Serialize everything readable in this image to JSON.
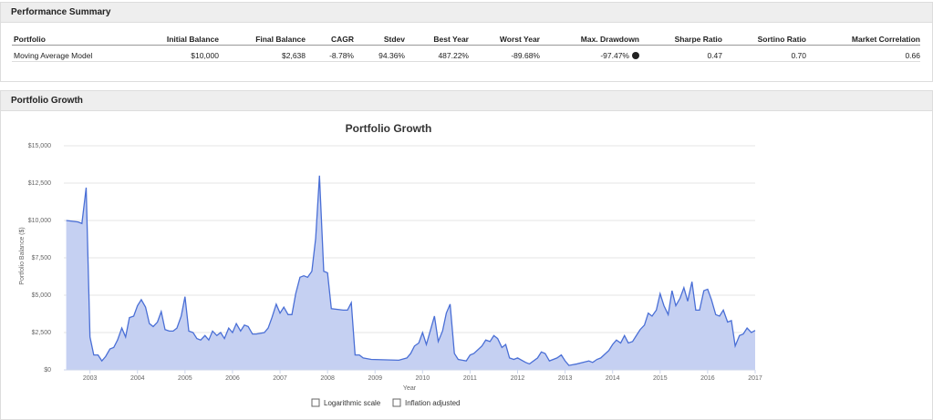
{
  "performance_summary": {
    "title": "Performance Summary",
    "table": {
      "columns": [
        "Portfolio",
        "Initial Balance",
        "Final Balance",
        "CAGR",
        "Stdev",
        "Best Year",
        "Worst Year",
        "Max. Drawdown",
        "Sharpe Ratio",
        "Sortino Ratio",
        "Market Correlation"
      ],
      "rows": [
        [
          "Moving Average Model",
          "$10,000",
          "$2,638",
          "-8.78%",
          "94.36%",
          "487.22%",
          "-89.68%",
          "-97.47%",
          "0.47",
          "0.70",
          "0.66"
        ]
      ]
    }
  },
  "portfolio_growth": {
    "title": "Portfolio Growth"
  },
  "chart_data": {
    "type": "area",
    "title": "Portfolio Growth",
    "x_label": "Year",
    "y_label": "Portfolio Balance ($)",
    "color": "#4a6fd6",
    "fill": "#c5d0f2",
    "grid": true,
    "xlim": [
      2002.45,
      2017
    ],
    "xticks": [
      2003,
      2004,
      2005,
      2006,
      2007,
      2008,
      2009,
      2010,
      2011,
      2012,
      2013,
      2014,
      2015,
      2016,
      2017
    ],
    "ylim": [
      0,
      15000
    ],
    "yticks": [
      {
        "value": 0,
        "label": "$0"
      },
      {
        "value": 2500,
        "label": "$2,500"
      },
      {
        "value": 5000,
        "label": "$5,000"
      },
      {
        "value": 7500,
        "label": "$7,500"
      },
      {
        "value": 10000,
        "label": "$10,000"
      },
      {
        "value": 12500,
        "label": "$12,500"
      },
      {
        "value": 15000,
        "label": "$15,000"
      }
    ],
    "x": [
      2002.5,
      2002.75,
      2002.83,
      2002.92,
      2003.0,
      2003.08,
      2003.17,
      2003.25,
      2003.33,
      2003.42,
      2003.5,
      2003.58,
      2003.67,
      2003.75,
      2003.83,
      2003.92,
      2004.0,
      2004.08,
      2004.17,
      2004.25,
      2004.33,
      2004.42,
      2004.5,
      2004.58,
      2004.67,
      2004.75,
      2004.83,
      2004.92,
      2005.0,
      2005.08,
      2005.17,
      2005.25,
      2005.33,
      2005.42,
      2005.5,
      2005.58,
      2005.67,
      2005.75,
      2005.83,
      2005.92,
      2006.0,
      2006.08,
      2006.17,
      2006.25,
      2006.33,
      2006.42,
      2006.5,
      2006.67,
      2006.75,
      2006.83,
      2006.92,
      2007.0,
      2007.08,
      2007.17,
      2007.25,
      2007.33,
      2007.42,
      2007.5,
      2007.58,
      2007.67,
      2007.75,
      2007.83,
      2007.92,
      2008.0,
      2008.08,
      2008.33,
      2008.42,
      2008.5,
      2008.58,
      2008.67,
      2008.75,
      2008.92,
      2009.5,
      2009.67,
      2009.75,
      2009.83,
      2009.92,
      2010.0,
      2010.08,
      2010.17,
      2010.25,
      2010.33,
      2010.42,
      2010.5,
      2010.58,
      2010.67,
      2010.75,
      2010.92,
      2011.0,
      2011.08,
      2011.25,
      2011.33,
      2011.42,
      2011.5,
      2011.58,
      2011.67,
      2011.75,
      2011.83,
      2011.92,
      2012.0,
      2012.17,
      2012.25,
      2012.42,
      2012.5,
      2012.58,
      2012.67,
      2012.83,
      2012.92,
      2013.0,
      2013.08,
      2013.25,
      2013.5,
      2013.58,
      2013.67,
      2013.75,
      2013.92,
      2014.0,
      2014.08,
      2014.17,
      2014.25,
      2014.33,
      2014.42,
      2014.5,
      2014.58,
      2014.67,
      2014.75,
      2014.83,
      2014.92,
      2015.0,
      2015.08,
      2015.17,
      2015.25,
      2015.33,
      2015.42,
      2015.5,
      2015.58,
      2015.67,
      2015.75,
      2015.83,
      2015.92,
      2016.0,
      2016.08,
      2016.17,
      2016.25,
      2016.33,
      2016.42,
      2016.5,
      2016.58,
      2016.67,
      2016.75,
      2016.83,
      2016.92,
      2017.0
    ],
    "values": [
      10000,
      9900,
      9800,
      12200,
      2200,
      1000,
      1000,
      600,
      900,
      1400,
      1500,
      2000,
      2800,
      2200,
      3500,
      3600,
      4300,
      4700,
      4200,
      3100,
      2900,
      3200,
      3900,
      2700,
      2600,
      2600,
      2800,
      3600,
      4900,
      2600,
      2500,
      2100,
      2000,
      2300,
      2000,
      2600,
      2300,
      2500,
      2100,
      2800,
      2500,
      3100,
      2600,
      3000,
      2900,
      2400,
      2400,
      2500,
      2800,
      3500,
      4400,
      3800,
      4200,
      3700,
      3700,
      5100,
      6200,
      6300,
      6200,
      6600,
      8800,
      13000,
      6600,
      6500,
      4100,
      4000,
      4000,
      4500,
      1000,
      1000,
      800,
      700,
      650,
      800,
      1100,
      1600,
      1800,
      2500,
      1700,
      2700,
      3600,
      1900,
      2600,
      3800,
      4400,
      1100,
      700,
      600,
      1000,
      1100,
      1600,
      2000,
      1900,
      2300,
      2100,
      1500,
      1700,
      800,
      700,
      800,
      500,
      400,
      800,
      1200,
      1100,
      600,
      800,
      1000,
      600,
      300,
      400,
      600,
      500,
      700,
      800,
      1300,
      1700,
      2000,
      1800,
      2300,
      1800,
      1900,
      2300,
      2700,
      3000,
      3800,
      3600,
      4000,
      5100,
      4300,
      3700,
      5300,
      4300,
      4800,
      5500,
      4600,
      5900,
      4000,
      4000,
      5300,
      5400,
      4700,
      3700,
      3600,
      4000,
      3200,
      3300,
      1600,
      2300,
      2400,
      2800,
      2500,
      2638
    ]
  },
  "controls": [
    "Logarithmic scale",
    "Inflation adjusted"
  ]
}
